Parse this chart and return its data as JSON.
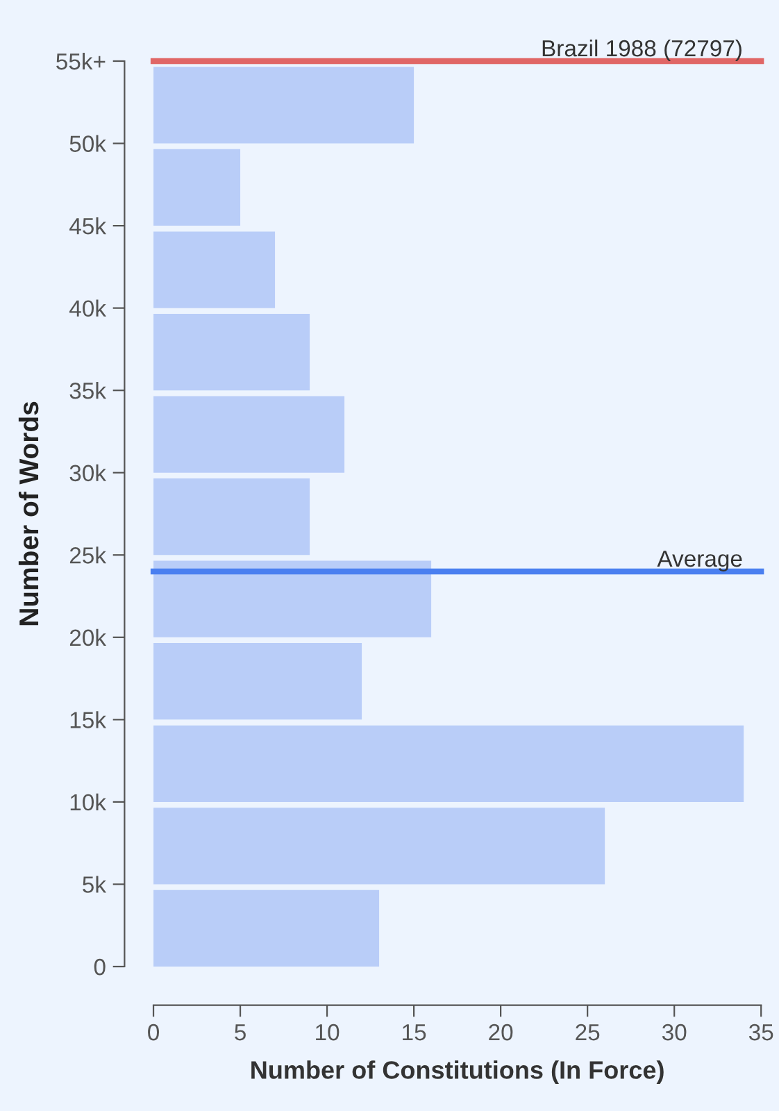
{
  "chart_data": {
    "type": "histogram",
    "orientation": "horizontal",
    "xlabel": "Number of Constitutions (In Force)",
    "ylabel": "Number of Words",
    "bins": [
      0,
      5000,
      10000,
      15000,
      20000,
      25000,
      30000,
      35000,
      40000,
      45000,
      50000,
      55000
    ],
    "values": [
      13,
      26,
      34,
      12,
      16,
      9,
      11,
      9,
      7,
      5,
      15
    ],
    "color": "#b9cdf8",
    "xlim": [
      0,
      35
    ],
    "xticks": [
      0,
      5,
      10,
      15,
      20,
      25,
      30,
      35
    ],
    "ylim": [
      0,
      55000
    ],
    "yticks": [
      {
        "value": 0,
        "label": "0"
      },
      {
        "value": 5000,
        "label": "5k"
      },
      {
        "value": 10000,
        "label": "10k"
      },
      {
        "value": 15000,
        "label": "15k"
      },
      {
        "value": 20000,
        "label": "20k"
      },
      {
        "value": 25000,
        "label": "25k"
      },
      {
        "value": 30000,
        "label": "30k"
      },
      {
        "value": 35000,
        "label": "35k"
      },
      {
        "value": 40000,
        "label": "40k"
      },
      {
        "value": 45000,
        "label": "45k"
      },
      {
        "value": 50000,
        "label": "50k"
      },
      {
        "value": 55000,
        "label": "55k+"
      }
    ],
    "ref_lines": [
      {
        "axis": "y",
        "value": 55000,
        "label": "Brazil 1988 (72797)",
        "color": "#e06666"
      },
      {
        "axis": "y",
        "value": 24000,
        "label": "Average",
        "color": "#4a7ff0"
      }
    ],
    "grid": false,
    "legend": false
  }
}
